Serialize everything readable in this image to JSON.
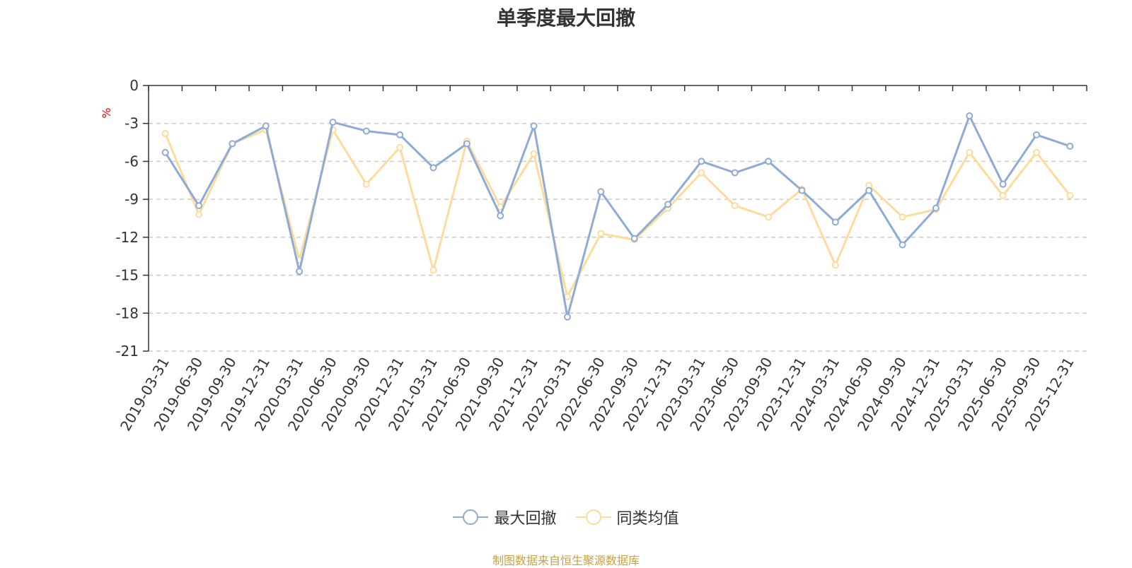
{
  "chart_data": {
    "type": "line",
    "title": "单季度最大回撤",
    "ylabel": "%",
    "ylim": [
      -21,
      0
    ],
    "yticks": [
      0,
      -3,
      -6,
      -9,
      -12,
      -15,
      -18,
      -21
    ],
    "grid": true,
    "legend_position": "bottom-center",
    "categories": [
      "2019-03-31",
      "2019-06-30",
      "2019-09-30",
      "2019-12-31",
      "2020-03-31",
      "2020-06-30",
      "2020-09-30",
      "2020-12-31",
      "2021-03-31",
      "2021-06-30",
      "2021-09-30",
      "2021-12-31",
      "2022-03-31",
      "2022-06-30",
      "2022-09-30",
      "2022-12-31",
      "2023-03-31",
      "2023-06-30",
      "2023-09-30",
      "2023-12-31",
      "2024-03-31",
      "2024-06-30",
      "2024-09-30",
      "2024-12-31",
      "2025-03-31",
      "2025-06-30",
      "2025-09-30",
      "2025-12-31"
    ],
    "series": [
      {
        "name": "最大回撤",
        "color": "#8eabd8",
        "values": [
          -5.3,
          -9.5,
          -4.6,
          -3.2,
          -14.7,
          -2.9,
          -3.6,
          -3.9,
          -6.5,
          -4.6,
          -10.3,
          -3.2,
          -18.3,
          -8.4,
          -12.1,
          -9.4,
          -6.0,
          -6.9,
          -6.0,
          -8.3,
          -10.8,
          -8.3,
          -12.6,
          -9.7,
          -2.4,
          -7.8,
          -3.9,
          -4.8
        ]
      },
      {
        "name": "同类均值",
        "color": "#fddc9b",
        "values": [
          -3.8,
          -10.2,
          -4.6,
          -3.5,
          -13.8,
          -3.5,
          -7.8,
          -4.9,
          -14.6,
          -4.4,
          -9.6,
          -5.4,
          -16.7,
          -11.7,
          -12.2,
          -9.7,
          -6.9,
          -9.5,
          -10.4,
          -8.2,
          -14.2,
          -7.9,
          -10.4,
          -9.8,
          -5.3,
          -8.7,
          -5.3,
          -8.7
        ]
      }
    ]
  },
  "footer": {
    "source": "制图数据来自恒生聚源数据库"
  }
}
